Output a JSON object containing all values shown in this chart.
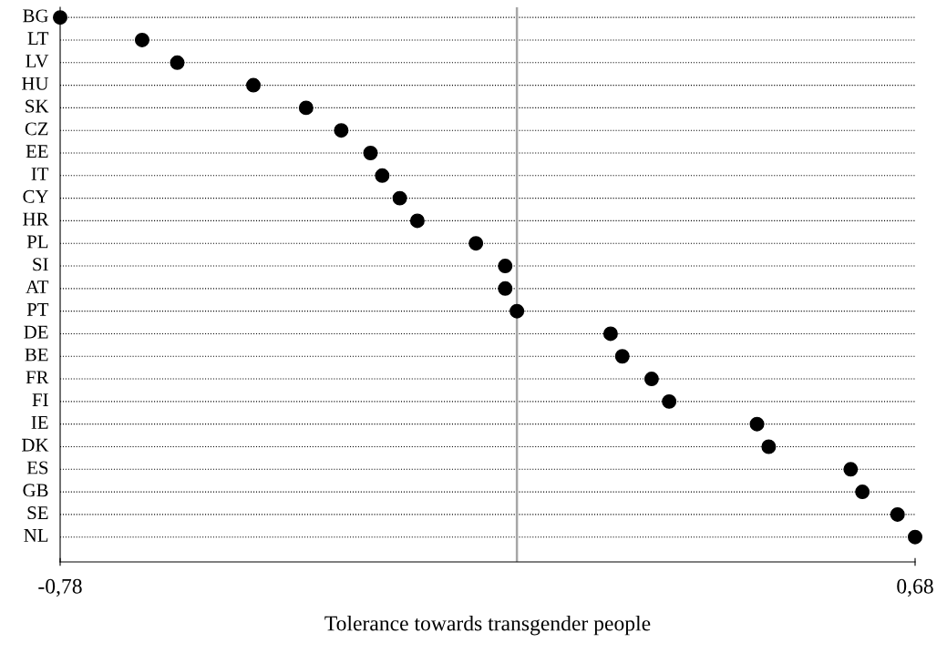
{
  "chart_data": {
    "type": "scatter",
    "orientation": "horizontal",
    "categories": [
      "BG",
      "LT",
      "LV",
      "HU",
      "SK",
      "CZ",
      "EE",
      "IT",
      "CY",
      "HR",
      "PL",
      "SI",
      "AT",
      "PT",
      "DE",
      "BE",
      "FR",
      "FI",
      "IE",
      "DK",
      "ES",
      "GB",
      "SE",
      "NL"
    ],
    "values": [
      -0.78,
      -0.64,
      -0.58,
      -0.45,
      -0.36,
      -0.3,
      -0.25,
      -0.23,
      -0.2,
      -0.17,
      -0.07,
      -0.02,
      -0.02,
      0.0,
      0.16,
      0.18,
      0.23,
      0.26,
      0.41,
      0.43,
      0.57,
      0.59,
      0.65,
      0.68
    ],
    "color": "#000000",
    "marker": "circle",
    "xlabel": "Tolerance towards transgender people",
    "xlim": [
      -0.78,
      0.68
    ],
    "xticks": [
      {
        "value": -0.78,
        "label": "-0,78"
      },
      {
        "value": 0.68,
        "label": "0,68"
      }
    ],
    "grid": "y",
    "ref_lines": [
      {
        "axis": "x",
        "value": 0,
        "color": "#a6a6a6",
        "line_style": "solid"
      }
    ]
  }
}
